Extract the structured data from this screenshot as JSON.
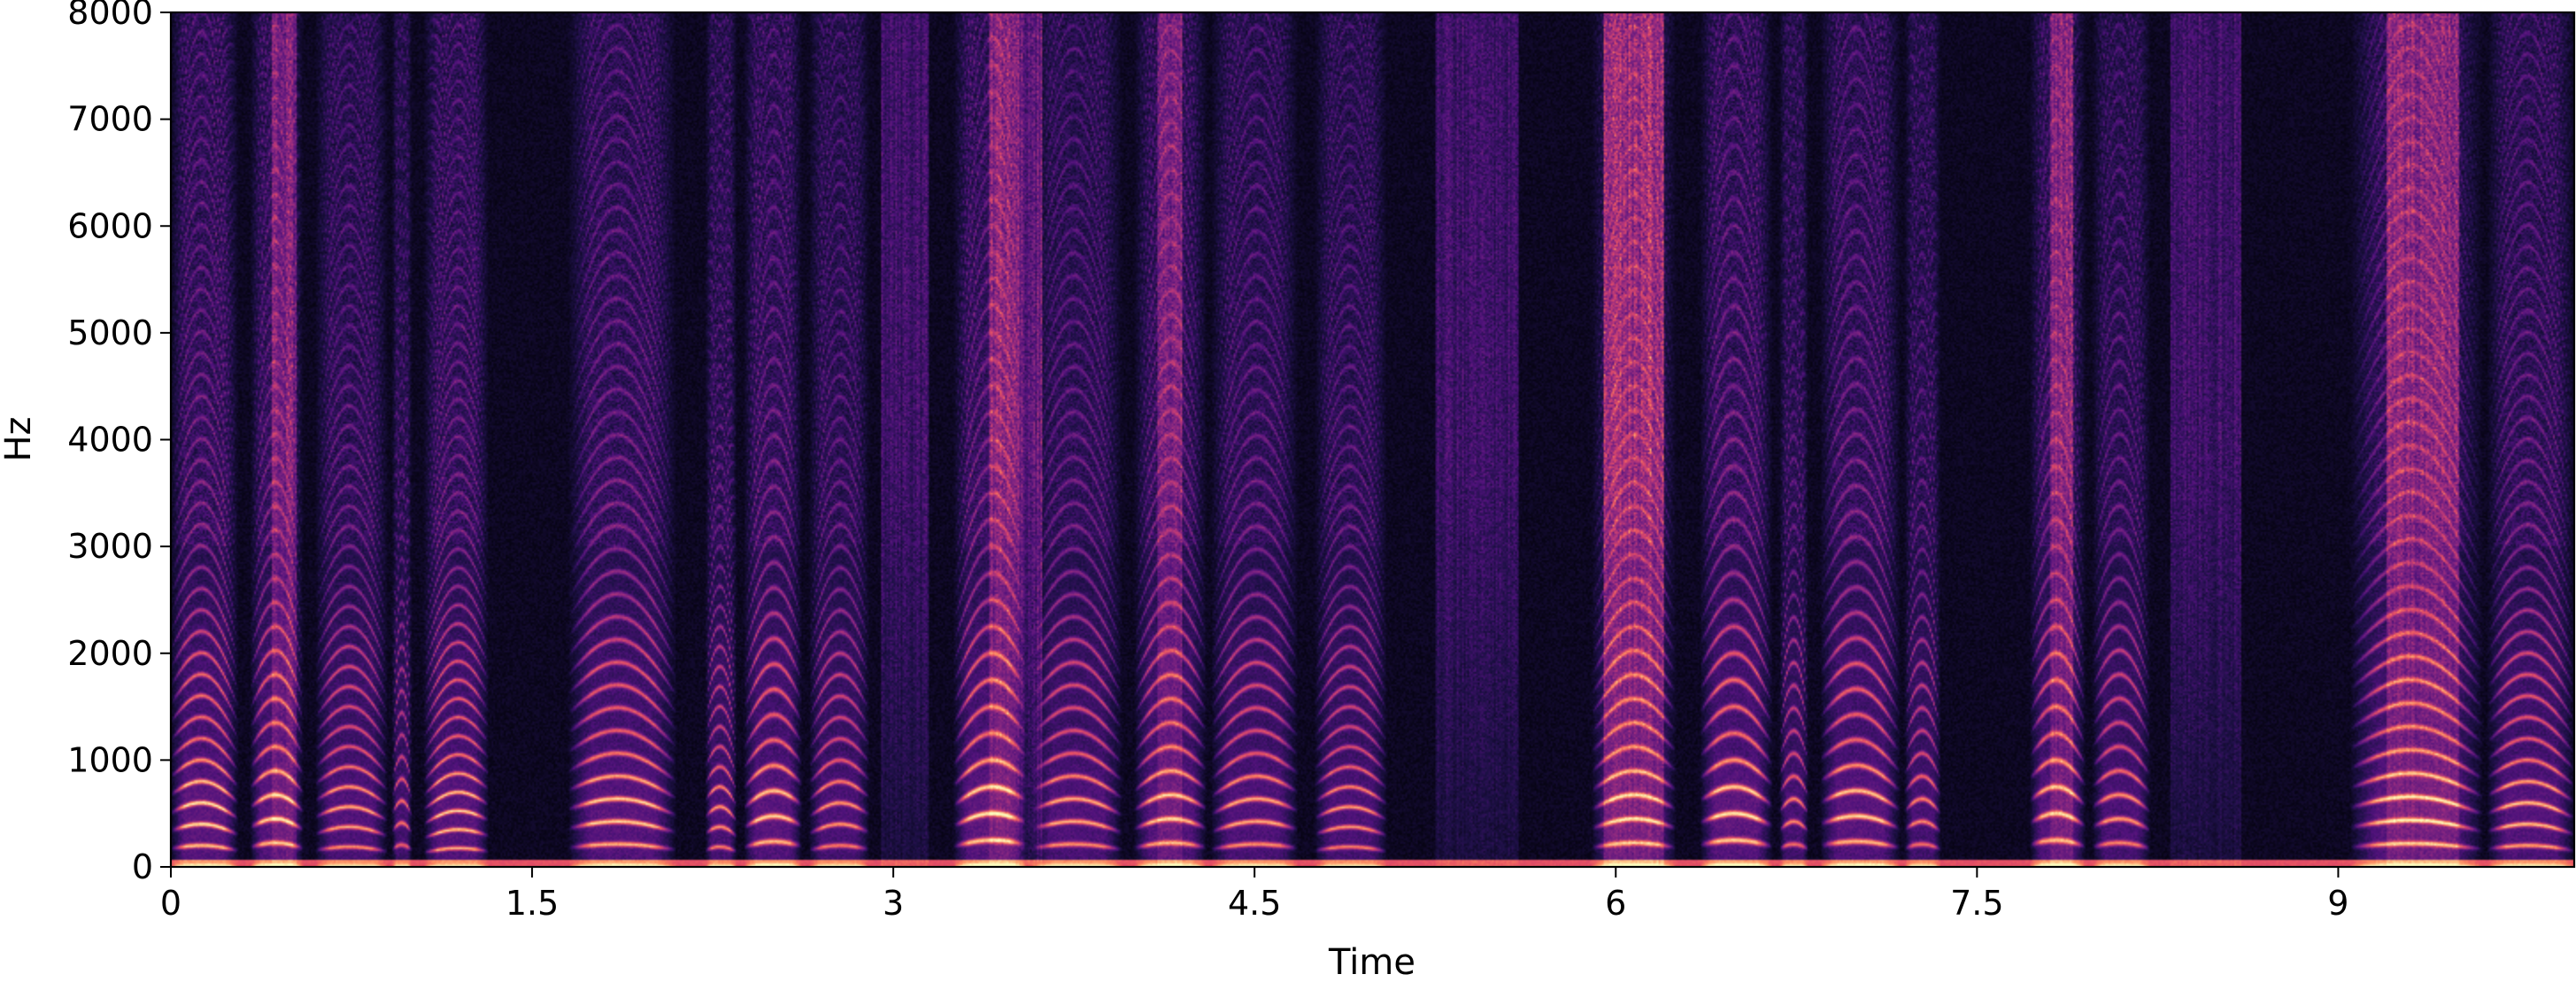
{
  "chart_data": {
    "type": "heatmap",
    "subtype": "spectrogram",
    "colormap": "magma",
    "title": "",
    "xlabel": "Time",
    "ylabel": "Hz",
    "xlim": [
      0,
      9.98
    ],
    "ylim": [
      0,
      8000
    ],
    "x_ticks": [
      0,
      1.5,
      3,
      4.5,
      6,
      7.5,
      9
    ],
    "x_tick_labels": [
      "0",
      "1.5",
      "3",
      "4.5",
      "6",
      "7.5",
      "9"
    ],
    "y_ticks": [
      0,
      1000,
      2000,
      3000,
      4000,
      5000,
      6000,
      7000,
      8000
    ],
    "y_tick_labels": [
      "0",
      "1000",
      "2000",
      "3000",
      "4000",
      "5000",
      "6000",
      "7000",
      "8000"
    ],
    "grid": false,
    "voiced_segments": [
      {
        "start": 0.0,
        "end": 0.28,
        "f0": 160,
        "level": 1.0
      },
      {
        "start": 0.33,
        "end": 0.55,
        "f0": 180,
        "level": 0.95
      },
      {
        "start": 0.6,
        "end": 0.9,
        "f0": 150,
        "level": 0.85
      },
      {
        "start": 0.92,
        "end": 1.0,
        "f0": 165,
        "level": 0.7
      },
      {
        "start": 1.05,
        "end": 1.32,
        "f0": 140,
        "level": 0.95
      },
      {
        "start": 1.65,
        "end": 2.1,
        "f0": 170,
        "level": 0.95
      },
      {
        "start": 2.22,
        "end": 2.35,
        "f0": 150,
        "level": 0.8
      },
      {
        "start": 2.38,
        "end": 2.62,
        "f0": 190,
        "level": 0.95
      },
      {
        "start": 2.65,
        "end": 2.9,
        "f0": 160,
        "level": 0.8
      },
      {
        "start": 3.25,
        "end": 3.55,
        "f0": 200,
        "level": 1.0
      },
      {
        "start": 3.58,
        "end": 3.95,
        "f0": 170,
        "level": 0.85
      },
      {
        "start": 4.0,
        "end": 4.3,
        "f0": 180,
        "level": 0.9
      },
      {
        "start": 4.32,
        "end": 4.68,
        "f0": 170,
        "level": 0.85
      },
      {
        "start": 4.75,
        "end": 5.05,
        "f0": 150,
        "level": 0.8
      },
      {
        "start": 5.9,
        "end": 6.25,
        "f0": 180,
        "level": 0.9
      },
      {
        "start": 6.35,
        "end": 6.65,
        "f0": 200,
        "level": 1.0
      },
      {
        "start": 6.68,
        "end": 6.8,
        "f0": 170,
        "level": 0.75
      },
      {
        "start": 6.85,
        "end": 7.18,
        "f0": 190,
        "level": 0.95
      },
      {
        "start": 7.2,
        "end": 7.35,
        "f0": 170,
        "level": 0.75
      },
      {
        "start": 7.72,
        "end": 7.95,
        "f0": 200,
        "level": 0.9
      },
      {
        "start": 7.98,
        "end": 8.22,
        "f0": 180,
        "level": 0.8
      },
      {
        "start": 9.05,
        "end": 9.6,
        "f0": 175,
        "level": 0.95
      },
      {
        "start": 9.62,
        "end": 9.98,
        "f0": 160,
        "level": 0.9
      }
    ],
    "noise_bursts": [
      {
        "start": 0.42,
        "end": 0.52,
        "level": 0.55
      },
      {
        "start": 2.95,
        "end": 3.15,
        "level": 0.45
      },
      {
        "start": 3.4,
        "end": 3.62,
        "level": 0.7
      },
      {
        "start": 4.1,
        "end": 4.2,
        "level": 0.65
      },
      {
        "start": 5.25,
        "end": 5.6,
        "level": 0.45
      },
      {
        "start": 5.95,
        "end": 6.2,
        "level": 0.9
      },
      {
        "start": 7.8,
        "end": 7.9,
        "level": 0.7
      },
      {
        "start": 8.3,
        "end": 8.6,
        "level": 0.45
      },
      {
        "start": 9.2,
        "end": 9.5,
        "level": 0.7
      }
    ]
  }
}
